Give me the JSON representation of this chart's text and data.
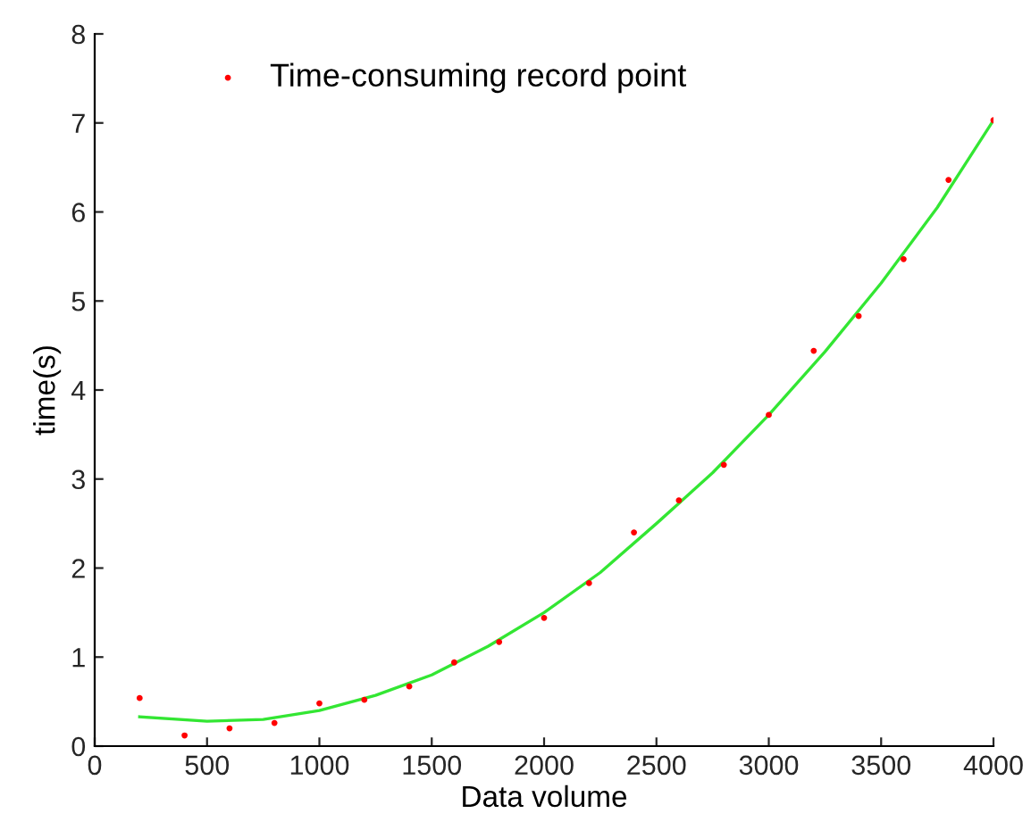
{
  "chart_data": {
    "type": "scatter",
    "xlabel": "Data volume",
    "ylabel": "time(s)",
    "xlim": [
      0,
      4000
    ],
    "xticks": [
      0,
      500,
      1000,
      1500,
      2000,
      2500,
      3000,
      3500,
      4000
    ],
    "ylim": [
      0,
      8
    ],
    "yticks": [
      0,
      1,
      2,
      3,
      4,
      5,
      6,
      7,
      8
    ],
    "grid": false,
    "legend": "top left",
    "series": [
      {
        "name": "Time-consuming record point",
        "color": "#ff0000",
        "marker": "circle",
        "x": [
          200,
          400,
          600,
          800,
          1000,
          1200,
          1400,
          1600,
          1800,
          2000,
          2200,
          2400,
          2600,
          2800,
          3000,
          3200,
          3400,
          3600,
          3800,
          4000
        ],
        "values": [
          0.54,
          0.12,
          0.2,
          0.26,
          0.48,
          0.52,
          0.67,
          0.94,
          1.17,
          1.44,
          1.83,
          2.4,
          2.76,
          3.16,
          3.72,
          4.44,
          4.83,
          5.47,
          6.36,
          7.03
        ]
      },
      {
        "type": "line",
        "color": "#33e633",
        "marker": "none",
        "x": [
          200,
          500,
          750,
          1000,
          1250,
          1500,
          1750,
          2000,
          2250,
          2500,
          2750,
          3000,
          3250,
          3500,
          3750,
          4000
        ],
        "values": [
          0.33,
          0.28,
          0.3,
          0.4,
          0.57,
          0.8,
          1.12,
          1.5,
          1.95,
          2.5,
          3.07,
          3.72,
          4.43,
          5.2,
          6.05,
          7.03
        ]
      }
    ]
  }
}
